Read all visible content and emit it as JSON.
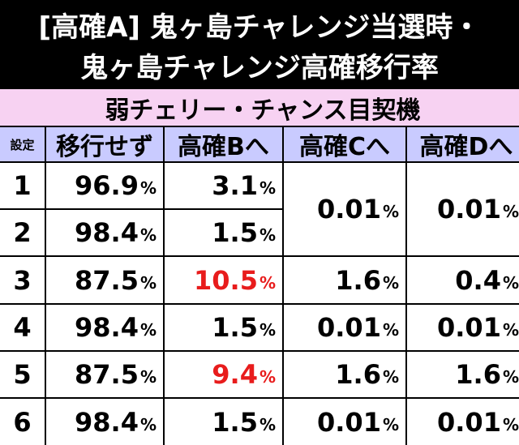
{
  "title": {
    "line1": "[高確A] 鬼ヶ島チャレンジ当選時・",
    "line2": "鬼ヶ島チャレンジ高確移行率"
  },
  "table": {
    "caption": "弱チェリー・チャンス目契機",
    "headers": [
      "設定",
      "移行せず",
      "高確Bへ",
      "高確Cへ",
      "高確Dへ"
    ],
    "rows": [
      {
        "setting": "1",
        "none": "96.9",
        "b": "3.1",
        "c": "0.01",
        "d": "0.01"
      },
      {
        "setting": "2",
        "none": "98.4",
        "b": "1.5"
      },
      {
        "setting": "3",
        "none": "87.5",
        "b": "10.5",
        "c": "1.6",
        "d": "0.4"
      },
      {
        "setting": "4",
        "none": "98.4",
        "b": "1.5",
        "c": "0.01",
        "d": "0.01"
      },
      {
        "setting": "5",
        "none": "87.5",
        "b": "9.4",
        "c": "1.6",
        "d": "1.6"
      },
      {
        "setting": "6",
        "none": "98.4",
        "b": "1.5",
        "c": "0.01",
        "d": "0.01"
      }
    ],
    "percent": "%"
  },
  "colors": {
    "caption_bg": "#f7d2f2",
    "header_bg": "#c9cbff",
    "highlight": "#e81c1c"
  }
}
